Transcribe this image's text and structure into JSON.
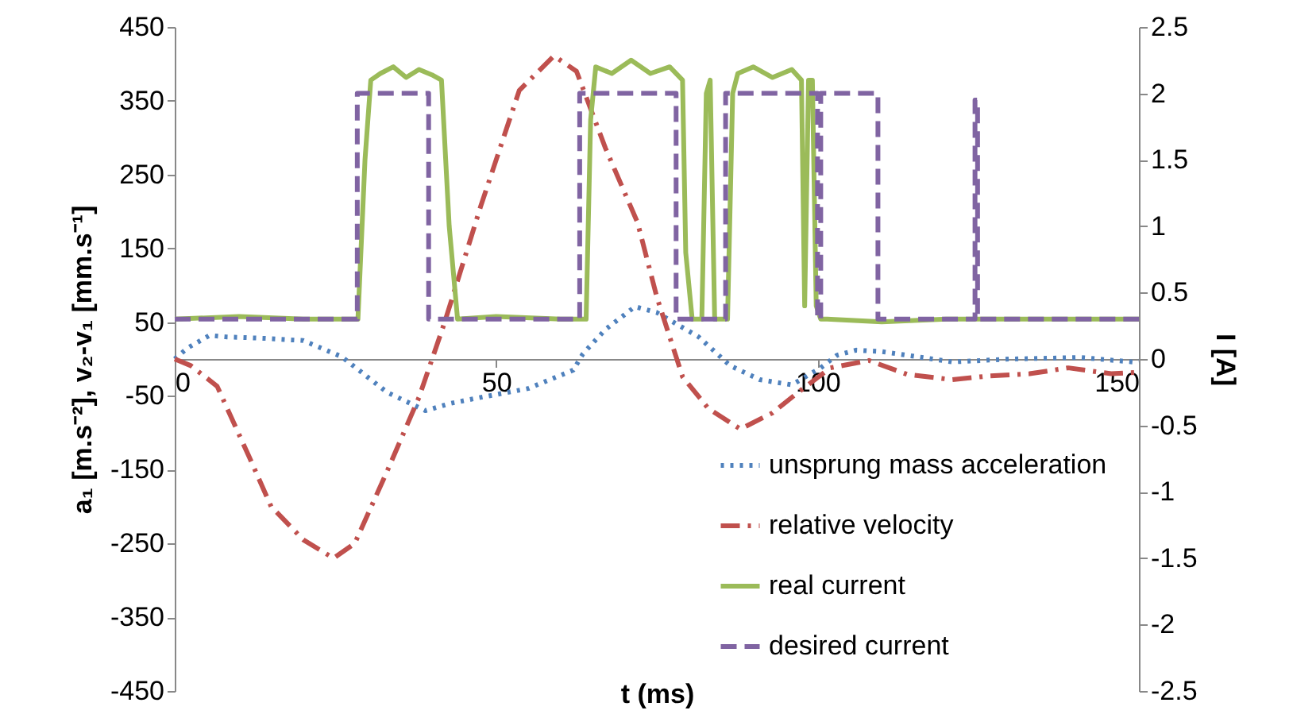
{
  "chart_data": {
    "type": "line",
    "xlabel": "t (ms)",
    "ylabel": "a₁ [m.s⁻²], v₂-v₁ [mm.s⁻¹]",
    "y2label": "I [A]",
    "xlim": [
      0,
      150
    ],
    "xticks": [
      0,
      50,
      100,
      150
    ],
    "ylim": [
      -450,
      450
    ],
    "yticks": [
      -450,
      -350,
      -250,
      -150,
      -50,
      50,
      150,
      250,
      350,
      450
    ],
    "y2lim": [
      -2.5,
      2.5
    ],
    "y2ticks": [
      -2.5,
      -2,
      -1.5,
      -1,
      -0.5,
      0,
      0.5,
      1,
      1.5,
      2,
      2.5
    ],
    "grid": false,
    "legend": "bottom right",
    "series": [
      {
        "name": "unsprung mass acceleration",
        "color": "#4f81bd",
        "line_style": "dotted",
        "x": [
          0,
          2,
          5.4,
          8,
          14,
          20,
          26,
          33,
          39,
          43,
          47,
          55,
          62,
          63.5,
          67,
          71.6,
          75,
          81.5,
          86.4,
          91,
          96,
          100.5,
          103,
          106,
          110,
          114,
          121,
          130,
          141,
          149,
          150
        ],
        "values": [
          0,
          15,
          32,
          30,
          28,
          25,
          3,
          -45,
          -70,
          -60,
          -53,
          -40,
          -15,
          7,
          40,
          71,
          63,
          30,
          -9,
          -28,
          -35,
          -12,
          5,
          12,
          10,
          5,
          -4,
          0,
          2,
          -4,
          -3
        ]
      },
      {
        "name": "relative velocity",
        "color": "#c0504d",
        "line_style": "dashdot",
        "x": [
          0,
          2.5,
          6.6,
          11.6,
          15,
          20,
          24.7,
          28,
          33,
          38,
          42,
          47.6,
          53.6,
          59,
          62.5,
          67,
          72,
          75,
          79,
          83,
          88,
          93,
          97,
          102,
          108,
          114,
          121,
          126.7,
          133,
          139,
          145.7,
          150
        ],
        "values": [
          0,
          -9,
          -37,
          -133,
          -200,
          -245,
          -270,
          -250,
          -153,
          -52,
          50,
          207,
          364,
          411,
          390,
          286,
          185,
          84,
          -24,
          -67,
          -95,
          -73,
          -45,
          -12,
          -2,
          -21,
          -28,
          -23,
          -20,
          -12,
          -20,
          -18
        ]
      },
      {
        "name": "real current",
        "color": "#9bbb59",
        "line_style": "solid",
        "axis": "y2",
        "x": [
          0,
          10,
          20,
          28.5,
          29.6,
          30.5,
          32,
          34,
          36,
          38,
          40,
          41.5,
          42.7,
          44,
          50,
          60,
          64,
          64.7,
          65.5,
          68,
          71,
          74,
          77,
          79,
          79.5,
          80.5,
          82,
          82.7,
          83.3,
          84,
          84.7,
          86,
          86.8,
          87.6,
          90,
          93,
          96,
          97.5,
          98,
          98.6,
          99.2,
          99.8,
          100.5,
          101.5,
          110,
          120,
          130,
          140,
          150
        ],
        "values": [
          0.3,
          0.32,
          0.3,
          0.3,
          1.5,
          2.1,
          2.15,
          2.2,
          2.12,
          2.18,
          2.14,
          2.1,
          1.0,
          0.3,
          0.32,
          0.3,
          0.3,
          1.8,
          2.2,
          2.15,
          2.25,
          2.15,
          2.2,
          2.1,
          0.8,
          0.3,
          0.3,
          2.0,
          2.1,
          0.3,
          0.3,
          0.3,
          2.0,
          2.15,
          2.2,
          2.12,
          2.18,
          2.1,
          0.4,
          2.1,
          2.1,
          0.4,
          0.3,
          0.3,
          0.28,
          0.3,
          0.3,
          0.3,
          0.3
        ]
      },
      {
        "name": "desired current",
        "color": "#8064a2",
        "line_style": "dashed",
        "axis": "y2",
        "x": [
          0,
          28.4,
          28.4,
          39.5,
          39.5,
          63,
          63,
          78,
          78,
          85.7,
          85.7,
          100,
          100,
          100.5,
          100.5,
          109.4,
          109.4,
          124.5,
          124.5,
          124.9,
          124.9,
          150
        ],
        "values": [
          0.3,
          0.3,
          2,
          2,
          0.3,
          0.3,
          2,
          2,
          0.3,
          0.3,
          2,
          2,
          0.3,
          0.3,
          2,
          2,
          0.3,
          0.3,
          1.95,
          1.95,
          0.3,
          0.3
        ]
      }
    ]
  }
}
